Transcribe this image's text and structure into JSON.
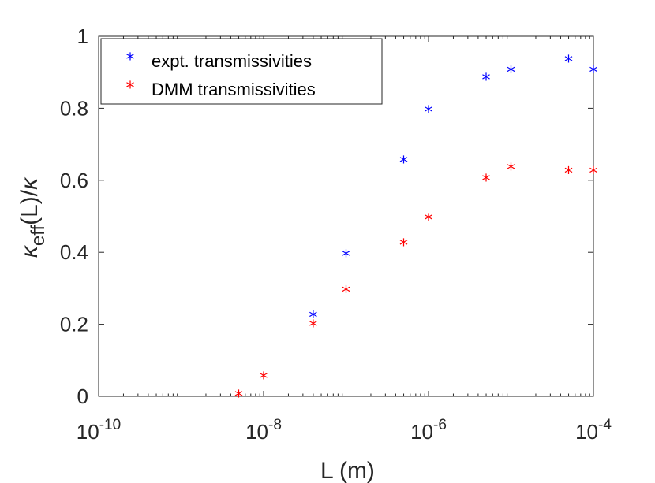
{
  "chart_data": {
    "type": "scatter",
    "x_scale": "log",
    "xlim": [
      1e-10,
      0.0001
    ],
    "ylim": [
      0,
      1
    ],
    "xlabel": "L (m)",
    "ylabel": {
      "kappa": "κ",
      "sub": "eff",
      "mid": "(L)/",
      "den": "κ"
    },
    "x_ticks": [
      {
        "value": 1e-10,
        "base": "10",
        "exp": "-10"
      },
      {
        "value": 1e-08,
        "base": "10",
        "exp": "-8"
      },
      {
        "value": 1e-06,
        "base": "10",
        "exp": "-6"
      },
      {
        "value": 0.0001,
        "base": "10",
        "exp": "-4"
      }
    ],
    "y_ticks": [
      {
        "value": 0,
        "label": "0"
      },
      {
        "value": 0.2,
        "label": "0.2"
      },
      {
        "value": 0.4,
        "label": "0.4"
      },
      {
        "value": 0.6,
        "label": "0.6"
      },
      {
        "value": 0.8,
        "label": "0.8"
      },
      {
        "value": 1,
        "label": "1"
      }
    ],
    "grid": false,
    "legend_position": "top-left",
    "marker": "*",
    "series": [
      {
        "name": "expt. transmissivities",
        "color": "#0000ff",
        "x": [
          4e-08,
          1e-07,
          5e-07,
          1e-06,
          5e-06,
          1e-05,
          5e-05,
          0.0001
        ],
        "y": [
          0.22,
          0.39,
          0.65,
          0.79,
          0.88,
          0.9,
          0.93,
          0.9
        ]
      },
      {
        "name": "DMM transmissivities",
        "color": "#ff0000",
        "x": [
          5e-09,
          1e-08,
          4e-08,
          1e-07,
          5e-07,
          1e-06,
          5e-06,
          1e-05,
          5e-05,
          0.0001
        ],
        "y": [
          0.0,
          0.05,
          0.195,
          0.29,
          0.42,
          0.49,
          0.6,
          0.63,
          0.62,
          0.62
        ]
      }
    ]
  }
}
